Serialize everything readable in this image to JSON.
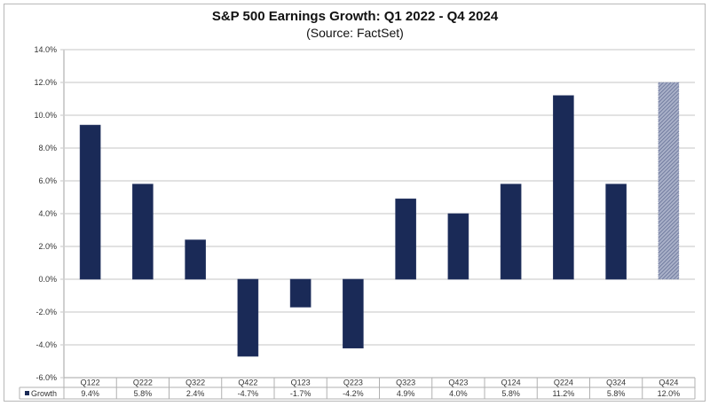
{
  "chart_data": {
    "type": "bar",
    "title": "S&P 500 Earnings Growth: Q1 2022 - Q4 2024",
    "subtitle": "(Source: FactSet)",
    "xlabel": "",
    "ylabel": "",
    "ylim": [
      -6,
      14
    ],
    "ytick_step": 2,
    "yticks": [
      "14.0%",
      "12.0%",
      "10.0%",
      "8.0%",
      "6.0%",
      "4.0%",
      "2.0%",
      "0.0%",
      "-2.0%",
      "-4.0%",
      "-6.0%"
    ],
    "grid": true,
    "categories": [
      "Q122",
      "Q222",
      "Q322",
      "Q422",
      "Q123",
      "Q223",
      "Q323",
      "Q423",
      "Q124",
      "Q224",
      "Q324",
      "Q424"
    ],
    "series": [
      {
        "name": "Growth",
        "values": [
          9.4,
          5.8,
          2.4,
          -4.7,
          -1.7,
          -4.2,
          4.9,
          4.0,
          5.8,
          11.2,
          5.8,
          12.0
        ],
        "labels": [
          "9.4%",
          "5.8%",
          "2.4%",
          "-4.7%",
          "-1.7%",
          "-4.2%",
          "4.9%",
          "4.0%",
          "5.8%",
          "11.2%",
          "5.8%",
          "12.0%"
        ],
        "color": "#1a2a57",
        "estimated_last": true,
        "estimate_color": "#8791b0"
      }
    ],
    "data_table": true,
    "legend_label": "Growth"
  }
}
